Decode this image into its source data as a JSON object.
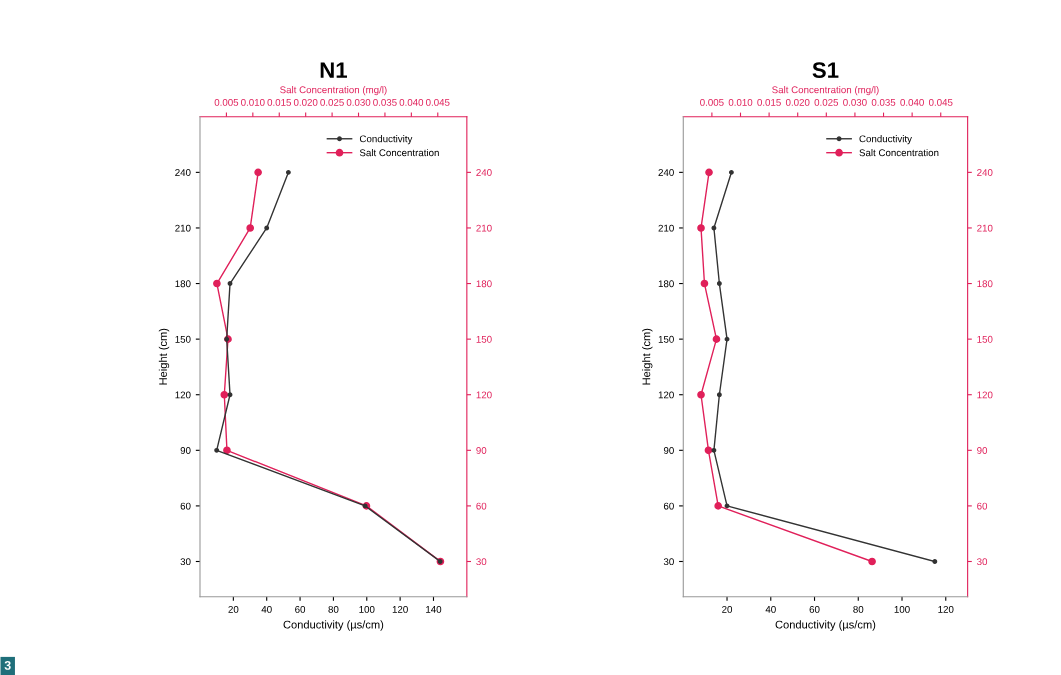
{
  "chart_data": [
    {
      "type": "line",
      "title": "N1",
      "xlabel": "Conductivity (µs/cm)",
      "ylabel": "Height (cm)",
      "x2label": "Salt Concentration (mg/l)",
      "xlim": [
        0,
        160
      ],
      "xticks": [
        20,
        40,
        60,
        80,
        100,
        120,
        140
      ],
      "x2lim": [
        0,
        0.0505
      ],
      "x2ticks": [
        {
          "value": 0.005,
          "label": "0.005"
        },
        {
          "value": 0.01,
          "label": "0.010"
        },
        {
          "value": 0.015,
          "label": "0.015"
        },
        {
          "value": 0.02,
          "label": "0.020"
        },
        {
          "value": 0.025,
          "label": "0.025"
        },
        {
          "value": 0.03,
          "label": "0.030"
        },
        {
          "value": 0.035,
          "label": "0.035"
        },
        {
          "value": 0.04,
          "label": "0.040"
        },
        {
          "value": 0.045,
          "label": "0.045"
        }
      ],
      "ylim": [
        11,
        270
      ],
      "yticks": [
        30,
        60,
        90,
        120,
        150,
        180,
        210,
        240
      ],
      "y2lim": [
        11,
        270
      ],
      "y2ticks": [
        30,
        60,
        90,
        120,
        150,
        180,
        210,
        240
      ],
      "marker": "circle",
      "line_style": "solid",
      "grid": false,
      "legend": "top right",
      "annotations": [
        "3"
      ],
      "series": [
        {
          "name": "Conductivity",
          "color": "#333333",
          "x": [
            144,
            99,
            10,
            18,
            16,
            18,
            40,
            53
          ],
          "values": [
            30,
            60,
            90,
            120,
            150,
            180,
            210,
            240
          ]
        },
        {
          "name": "Salt Concentration",
          "color": "#e0205a",
          "axis": "x2",
          "x": [
            0.0455,
            0.0315,
            0.0051,
            0.0046,
            0.0053,
            0.0032,
            0.0095,
            0.011
          ],
          "values": [
            30,
            60,
            90,
            120,
            150,
            180,
            210,
            240
          ]
        }
      ]
    },
    {
      "type": "line",
      "title": "S1",
      "xlabel": "Conductivity (µs/cm)",
      "ylabel": "Height (cm)",
      "x2label": "Salt Concentration (mg/l)",
      "xlim": [
        0,
        130
      ],
      "xticks": [
        20,
        40,
        60,
        80,
        100,
        120
      ],
      "x2lim": [
        0,
        0.0497
      ],
      "x2ticks": [
        {
          "value": 0.005,
          "label": "0.005"
        },
        {
          "value": 0.01,
          "label": "0.010"
        },
        {
          "value": 0.015,
          "label": "0.015"
        },
        {
          "value": 0.02,
          "label": "0.020"
        },
        {
          "value": 0.025,
          "label": "0.025"
        },
        {
          "value": 0.03,
          "label": "0.030"
        },
        {
          "value": 0.035,
          "label": "0.035"
        },
        {
          "value": 0.04,
          "label": "0.040"
        },
        {
          "value": 0.045,
          "label": "0.045"
        }
      ],
      "ylim": [
        11,
        270
      ],
      "yticks": [
        30,
        60,
        90,
        120,
        150,
        180,
        210,
        240
      ],
      "y2lim": [
        11,
        270
      ],
      "y2ticks": [
        30,
        60,
        90,
        120,
        150,
        180,
        210,
        240
      ],
      "marker": "circle",
      "line_style": "solid",
      "grid": false,
      "legend": "top right",
      "series": [
        {
          "name": "Conductivity",
          "color": "#333333",
          "x": [
            115,
            20,
            14,
            16.5,
            20,
            16.5,
            14,
            22
          ],
          "values": [
            30,
            60,
            90,
            120,
            150,
            180,
            210,
            240
          ]
        },
        {
          "name": "Salt Concentration",
          "color": "#e0205a",
          "axis": "x2",
          "x": [
            0.033,
            0.0061,
            0.0044,
            0.0031,
            0.0058,
            0.0037,
            0.0031,
            0.0045
          ],
          "values": [
            30,
            60,
            90,
            120,
            150,
            180,
            210,
            240
          ]
        }
      ]
    }
  ]
}
